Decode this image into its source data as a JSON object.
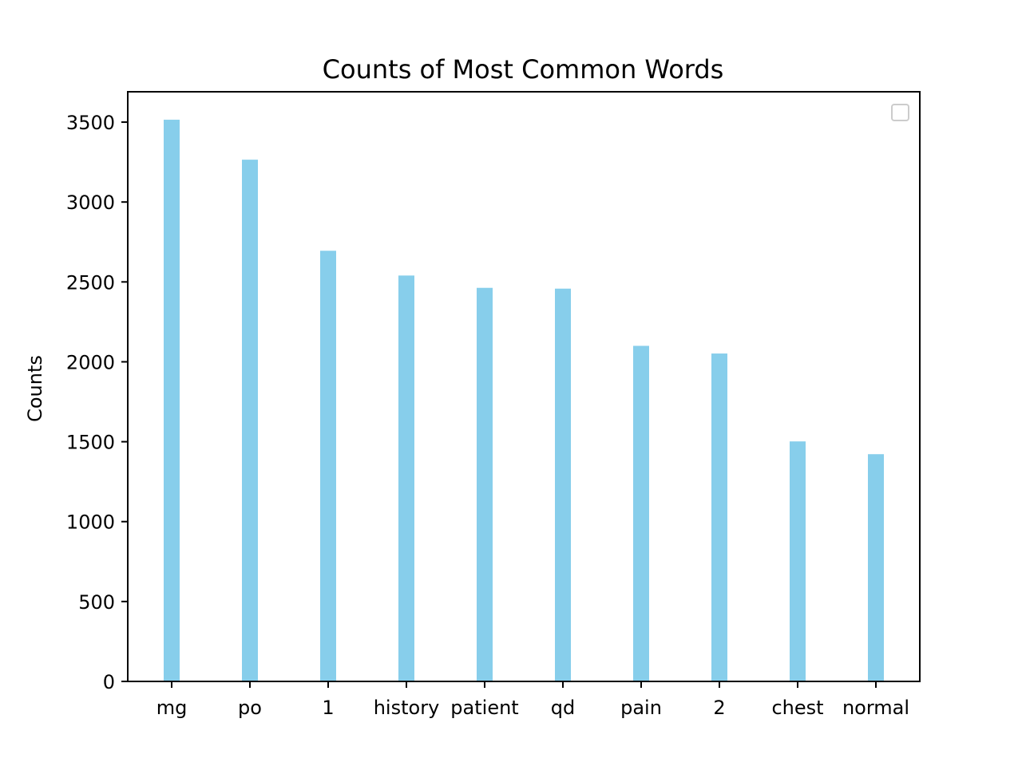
{
  "chart_data": {
    "type": "bar",
    "title": "Counts of Most Common Words",
    "xlabel": "",
    "ylabel": "Counts",
    "categories": [
      "mg",
      "po",
      "1",
      "history",
      "patient",
      "qd",
      "pain",
      "2",
      "chest",
      "normal"
    ],
    "values": [
      3515,
      3265,
      2695,
      2540,
      2463,
      2458,
      2100,
      2052,
      1502,
      1422
    ],
    "ylim": [
      0,
      3690
    ],
    "yticks": [
      0,
      500,
      1000,
      1500,
      2000,
      2500,
      3000,
      3500
    ],
    "grid": false,
    "legend": {
      "placement": "top-right",
      "entries": []
    },
    "colors": {
      "bar": "#87ceeb",
      "axis": "#000000",
      "legend_border": "#cccccc"
    }
  }
}
